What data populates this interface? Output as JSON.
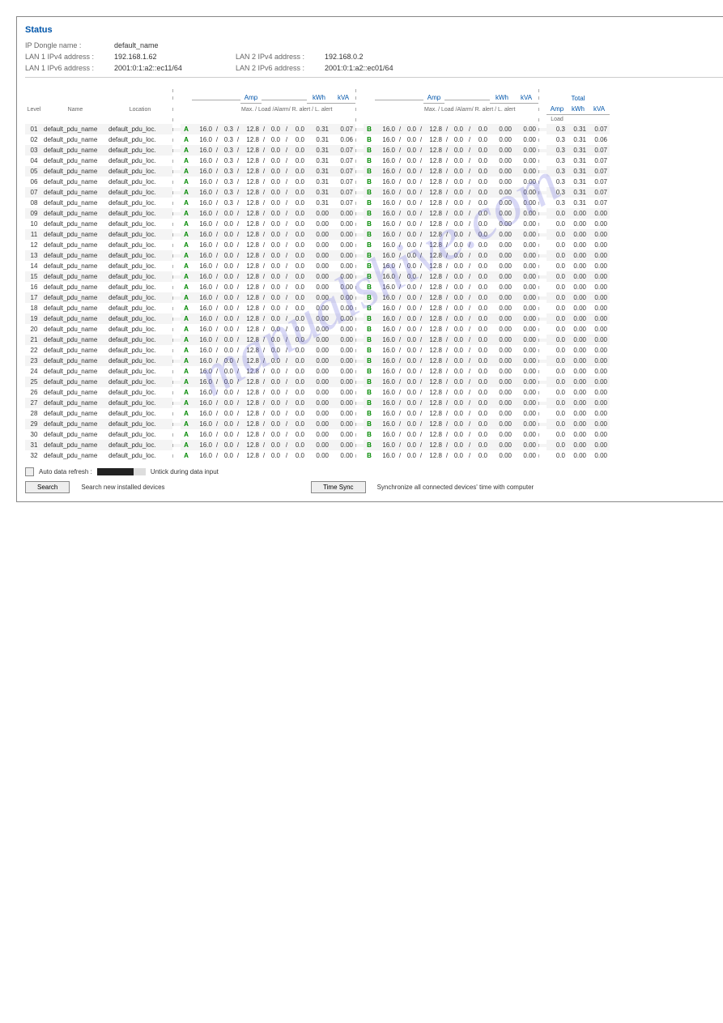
{
  "watermark": "manualshive.com",
  "header": {
    "title": "Status",
    "labels": {
      "dongle": "IP Dongle name :",
      "lan1v4": "LAN 1 IPv4 address :",
      "lan1v6": "LAN 1 IPv6 address :",
      "lan2v4": "LAN 2 IPv4 address :",
      "lan2v6": "LAN 2 IPv6 address :"
    },
    "values": {
      "dongle": "default_name",
      "lan1v4": "192.168.1.62",
      "lan1v6": "2001:0:1:a2::ec11/64",
      "lan2v4": "192.168.0.2",
      "lan2v6": "2001:0:1:a2::ec01/64"
    }
  },
  "columns": {
    "level": "Level",
    "name": "Name",
    "location": "Location",
    "amp": "Amp",
    "kwh": "kWh",
    "kva": "kVA",
    "total": "Total",
    "load": "Load",
    "sub": "Max. / Load /Alarm/ R. alert / L. alert"
  },
  "defaults": {
    "name": "default_pdu_name",
    "loc": "default_pdu_loc.",
    "sep": "/"
  },
  "rowsA": [
    {
      "lv": "01",
      "max": "16.0",
      "load": "0.3",
      "alarm": "12.8",
      "ra": "0.0",
      "la": "0.0",
      "kwh": "0.31",
      "kva": "0.07"
    },
    {
      "lv": "02",
      "max": "16.0",
      "load": "0.3",
      "alarm": "12.8",
      "ra": "0.0",
      "la": "0.0",
      "kwh": "0.31",
      "kva": "0.06"
    },
    {
      "lv": "03",
      "max": "16.0",
      "load": "0.3",
      "alarm": "12.8",
      "ra": "0.0",
      "la": "0.0",
      "kwh": "0.31",
      "kva": "0.07"
    },
    {
      "lv": "04",
      "max": "16.0",
      "load": "0.3",
      "alarm": "12.8",
      "ra": "0.0",
      "la": "0.0",
      "kwh": "0.31",
      "kva": "0.07"
    },
    {
      "lv": "05",
      "max": "16.0",
      "load": "0.3",
      "alarm": "12.8",
      "ra": "0.0",
      "la": "0.0",
      "kwh": "0.31",
      "kva": "0.07"
    },
    {
      "lv": "06",
      "max": "16.0",
      "load": "0.3",
      "alarm": "12.8",
      "ra": "0.0",
      "la": "0.0",
      "kwh": "0.31",
      "kva": "0.07"
    },
    {
      "lv": "07",
      "max": "16.0",
      "load": "0.3",
      "alarm": "12.8",
      "ra": "0.0",
      "la": "0.0",
      "kwh": "0.31",
      "kva": "0.07"
    },
    {
      "lv": "08",
      "max": "16.0",
      "load": "0.3",
      "alarm": "12.8",
      "ra": "0.0",
      "la": "0.0",
      "kwh": "0.31",
      "kva": "0.07"
    },
    {
      "lv": "09",
      "max": "16.0",
      "load": "0.0",
      "alarm": "12.8",
      "ra": "0.0",
      "la": "0.0",
      "kwh": "0.00",
      "kva": "0.00"
    },
    {
      "lv": "10",
      "max": "16.0",
      "load": "0.0",
      "alarm": "12.8",
      "ra": "0.0",
      "la": "0.0",
      "kwh": "0.00",
      "kva": "0.00"
    },
    {
      "lv": "11",
      "max": "16.0",
      "load": "0.0",
      "alarm": "12.8",
      "ra": "0.0",
      "la": "0.0",
      "kwh": "0.00",
      "kva": "0.00"
    },
    {
      "lv": "12",
      "max": "16.0",
      "load": "0.0",
      "alarm": "12.8",
      "ra": "0.0",
      "la": "0.0",
      "kwh": "0.00",
      "kva": "0.00"
    },
    {
      "lv": "13",
      "max": "16.0",
      "load": "0.0",
      "alarm": "12.8",
      "ra": "0.0",
      "la": "0.0",
      "kwh": "0.00",
      "kva": "0.00"
    },
    {
      "lv": "14",
      "max": "16.0",
      "load": "0.0",
      "alarm": "12.8",
      "ra": "0.0",
      "la": "0.0",
      "kwh": "0.00",
      "kva": "0.00"
    },
    {
      "lv": "15",
      "max": "16.0",
      "load": "0.0",
      "alarm": "12.8",
      "ra": "0.0",
      "la": "0.0",
      "kwh": "0.00",
      "kva": "0.00"
    },
    {
      "lv": "16",
      "max": "16.0",
      "load": "0.0",
      "alarm": "12.8",
      "ra": "0.0",
      "la": "0.0",
      "kwh": "0.00",
      "kva": "0.00"
    },
    {
      "lv": "17",
      "max": "16.0",
      "load": "0.0",
      "alarm": "12.8",
      "ra": "0.0",
      "la": "0.0",
      "kwh": "0.00",
      "kva": "0.00"
    },
    {
      "lv": "18",
      "max": "16.0",
      "load": "0.0",
      "alarm": "12.8",
      "ra": "0.0",
      "la": "0.0",
      "kwh": "0.00",
      "kva": "0.00"
    },
    {
      "lv": "19",
      "max": "16.0",
      "load": "0.0",
      "alarm": "12.8",
      "ra": "0.0",
      "la": "0.0",
      "kwh": "0.00",
      "kva": "0.00"
    },
    {
      "lv": "20",
      "max": "16.0",
      "load": "0.0",
      "alarm": "12.8",
      "ra": "0.0",
      "la": "0.0",
      "kwh": "0.00",
      "kva": "0.00"
    },
    {
      "lv": "21",
      "max": "16.0",
      "load": "0.0",
      "alarm": "12.8",
      "ra": "0.0",
      "la": "0.0",
      "kwh": "0.00",
      "kva": "0.00"
    },
    {
      "lv": "22",
      "max": "16.0",
      "load": "0.0",
      "alarm": "12.8",
      "ra": "0.0",
      "la": "0.0",
      "kwh": "0.00",
      "kva": "0.00"
    },
    {
      "lv": "23",
      "max": "16.0",
      "load": "0.0",
      "alarm": "12.8",
      "ra": "0.0",
      "la": "0.0",
      "kwh": "0.00",
      "kva": "0.00"
    },
    {
      "lv": "24",
      "max": "16.0",
      "load": "0.0",
      "alarm": "12.8",
      "ra": "0.0",
      "la": "0.0",
      "kwh": "0.00",
      "kva": "0.00"
    },
    {
      "lv": "25",
      "max": "16.0",
      "load": "0.0",
      "alarm": "12.8",
      "ra": "0.0",
      "la": "0.0",
      "kwh": "0.00",
      "kva": "0.00"
    },
    {
      "lv": "26",
      "max": "16.0",
      "load": "0.0",
      "alarm": "12.8",
      "ra": "0.0",
      "la": "0.0",
      "kwh": "0.00",
      "kva": "0.00"
    },
    {
      "lv": "27",
      "max": "16.0",
      "load": "0.0",
      "alarm": "12.8",
      "ra": "0.0",
      "la": "0.0",
      "kwh": "0.00",
      "kva": "0.00"
    },
    {
      "lv": "28",
      "max": "16.0",
      "load": "0.0",
      "alarm": "12.8",
      "ra": "0.0",
      "la": "0.0",
      "kwh": "0.00",
      "kva": "0.00"
    },
    {
      "lv": "29",
      "max": "16.0",
      "load": "0.0",
      "alarm": "12.8",
      "ra": "0.0",
      "la": "0.0",
      "kwh": "0.00",
      "kva": "0.00"
    },
    {
      "lv": "30",
      "max": "16.0",
      "load": "0.0",
      "alarm": "12.8",
      "ra": "0.0",
      "la": "0.0",
      "kwh": "0.00",
      "kva": "0.00"
    },
    {
      "lv": "31",
      "max": "16.0",
      "load": "0.0",
      "alarm": "12.8",
      "ra": "0.0",
      "la": "0.0",
      "kwh": "0.00",
      "kva": "0.00"
    },
    {
      "lv": "32",
      "max": "16.0",
      "load": "0.0",
      "alarm": "12.8",
      "ra": "0.0",
      "la": "0.0",
      "kwh": "0.00",
      "kva": "0.00"
    }
  ],
  "rowsB": [
    {
      "max": "16.0",
      "load": "0.0",
      "alarm": "12.8",
      "ra": "0.0",
      "la": "0.0",
      "kwh": "0.00",
      "kva": "0.00"
    },
    {
      "max": "16.0",
      "load": "0.0",
      "alarm": "12.8",
      "ra": "0.0",
      "la": "0.0",
      "kwh": "0.00",
      "kva": "0.00"
    },
    {
      "max": "16.0",
      "load": "0.0",
      "alarm": "12.8",
      "ra": "0.0",
      "la": "0.0",
      "kwh": "0.00",
      "kva": "0.00"
    },
    {
      "max": "16.0",
      "load": "0.0",
      "alarm": "12.8",
      "ra": "0.0",
      "la": "0.0",
      "kwh": "0.00",
      "kva": "0.00"
    },
    {
      "max": "16.0",
      "load": "0.0",
      "alarm": "12.8",
      "ra": "0.0",
      "la": "0.0",
      "kwh": "0.00",
      "kva": "0.00"
    },
    {
      "max": "16.0",
      "load": "0.0",
      "alarm": "12.8",
      "ra": "0.0",
      "la": "0.0",
      "kwh": "0.00",
      "kva": "0.00"
    },
    {
      "max": "16.0",
      "load": "0.0",
      "alarm": "12.8",
      "ra": "0.0",
      "la": "0.0",
      "kwh": "0.00",
      "kva": "0.00"
    },
    {
      "max": "16.0",
      "load": "0.0",
      "alarm": "12.8",
      "ra": "0.0",
      "la": "0.0",
      "kwh": "0.00",
      "kva": "0.00"
    },
    {
      "max": "16.0",
      "load": "0.0",
      "alarm": "12.8",
      "ra": "0.0",
      "la": "0.0",
      "kwh": "0.00",
      "kva": "0.00"
    },
    {
      "max": "16.0",
      "load": "0.0",
      "alarm": "12.8",
      "ra": "0.0",
      "la": "0.0",
      "kwh": "0.00",
      "kva": "0.00"
    },
    {
      "max": "16.0",
      "load": "0.0",
      "alarm": "12.8",
      "ra": "0.0",
      "la": "0.0",
      "kwh": "0.00",
      "kva": "0.00"
    },
    {
      "max": "16.0",
      "load": "0.0",
      "alarm": "12.8",
      "ra": "0.0",
      "la": "0.0",
      "kwh": "0.00",
      "kva": "0.00"
    },
    {
      "max": "16.0",
      "load": "0.0",
      "alarm": "12.8",
      "ra": "0.0",
      "la": "0.0",
      "kwh": "0.00",
      "kva": "0.00"
    },
    {
      "max": "16.0",
      "load": "0.0",
      "alarm": "12.8",
      "ra": "0.0",
      "la": "0.0",
      "kwh": "0.00",
      "kva": "0.00"
    },
    {
      "max": "16.0",
      "load": "0.0",
      "alarm": "12.8",
      "ra": "0.0",
      "la": "0.0",
      "kwh": "0.00",
      "kva": "0.00"
    },
    {
      "max": "16.0",
      "load": "0.0",
      "alarm": "12.8",
      "ra": "0.0",
      "la": "0.0",
      "kwh": "0.00",
      "kva": "0.00"
    },
    {
      "max": "16.0",
      "load": "0.0",
      "alarm": "12.8",
      "ra": "0.0",
      "la": "0.0",
      "kwh": "0.00",
      "kva": "0.00"
    },
    {
      "max": "16.0",
      "load": "0.0",
      "alarm": "12.8",
      "ra": "0.0",
      "la": "0.0",
      "kwh": "0.00",
      "kva": "0.00"
    },
    {
      "max": "16.0",
      "load": "0.0",
      "alarm": "12.8",
      "ra": "0.0",
      "la": "0.0",
      "kwh": "0.00",
      "kva": "0.00"
    },
    {
      "max": "16.0",
      "load": "0.0",
      "alarm": "12.8",
      "ra": "0.0",
      "la": "0.0",
      "kwh": "0.00",
      "kva": "0.00"
    },
    {
      "max": "16.0",
      "load": "0.0",
      "alarm": "12.8",
      "ra": "0.0",
      "la": "0.0",
      "kwh": "0.00",
      "kva": "0.00"
    },
    {
      "max": "16.0",
      "load": "0.0",
      "alarm": "12.8",
      "ra": "0.0",
      "la": "0.0",
      "kwh": "0.00",
      "kva": "0.00"
    },
    {
      "max": "16.0",
      "load": "0.0",
      "alarm": "12.8",
      "ra": "0.0",
      "la": "0.0",
      "kwh": "0.00",
      "kva": "0.00"
    },
    {
      "max": "16.0",
      "load": "0.0",
      "alarm": "12.8",
      "ra": "0.0",
      "la": "0.0",
      "kwh": "0.00",
      "kva": "0.00"
    },
    {
      "max": "16.0",
      "load": "0.0",
      "alarm": "12.8",
      "ra": "0.0",
      "la": "0.0",
      "kwh": "0.00",
      "kva": "0.00"
    },
    {
      "max": "16.0",
      "load": "0.0",
      "alarm": "12.8",
      "ra": "0.0",
      "la": "0.0",
      "kwh": "0.00",
      "kva": "0.00"
    },
    {
      "max": "16.0",
      "load": "0.0",
      "alarm": "12.8",
      "ra": "0.0",
      "la": "0.0",
      "kwh": "0.00",
      "kva": "0.00"
    },
    {
      "max": "16.0",
      "load": "0.0",
      "alarm": "12.8",
      "ra": "0.0",
      "la": "0.0",
      "kwh": "0.00",
      "kva": "0.00"
    },
    {
      "max": "16.0",
      "load": "0.0",
      "alarm": "12.8",
      "ra": "0.0",
      "la": "0.0",
      "kwh": "0.00",
      "kva": "0.00"
    },
    {
      "max": "16.0",
      "load": "0.0",
      "alarm": "12.8",
      "ra": "0.0",
      "la": "0.0",
      "kwh": "0.00",
      "kva": "0.00"
    },
    {
      "max": "16.0",
      "load": "0.0",
      "alarm": "12.8",
      "ra": "0.0",
      "la": "0.0",
      "kwh": "0.00",
      "kva": "0.00"
    },
    {
      "max": "16.0",
      "load": "0.0",
      "alarm": "12.8",
      "ra": "0.0",
      "la": "0.0",
      "kwh": "0.00",
      "kva": "0.00"
    }
  ],
  "totals": [
    {
      "amp": "0.3",
      "kwh": "0.31",
      "kva": "0.07"
    },
    {
      "amp": "0.3",
      "kwh": "0.31",
      "kva": "0.06"
    },
    {
      "amp": "0.3",
      "kwh": "0.31",
      "kva": "0.07"
    },
    {
      "amp": "0.3",
      "kwh": "0.31",
      "kva": "0.07"
    },
    {
      "amp": "0.3",
      "kwh": "0.31",
      "kva": "0.07"
    },
    {
      "amp": "0.3",
      "kwh": "0.31",
      "kva": "0.07"
    },
    {
      "amp": "0.3",
      "kwh": "0.31",
      "kva": "0.07"
    },
    {
      "amp": "0.3",
      "kwh": "0.31",
      "kva": "0.07"
    },
    {
      "amp": "0.0",
      "kwh": "0.00",
      "kva": "0.00"
    },
    {
      "amp": "0.0",
      "kwh": "0.00",
      "kva": "0.00"
    },
    {
      "amp": "0.0",
      "kwh": "0.00",
      "kva": "0.00"
    },
    {
      "amp": "0.0",
      "kwh": "0.00",
      "kva": "0.00"
    },
    {
      "amp": "0.0",
      "kwh": "0.00",
      "kva": "0.00"
    },
    {
      "amp": "0.0",
      "kwh": "0.00",
      "kva": "0.00"
    },
    {
      "amp": "0.0",
      "kwh": "0.00",
      "kva": "0.00"
    },
    {
      "amp": "0.0",
      "kwh": "0.00",
      "kva": "0.00"
    },
    {
      "amp": "0.0",
      "kwh": "0.00",
      "kva": "0.00"
    },
    {
      "amp": "0.0",
      "kwh": "0.00",
      "kva": "0.00"
    },
    {
      "amp": "0.0",
      "kwh": "0.00",
      "kva": "0.00"
    },
    {
      "amp": "0.0",
      "kwh": "0.00",
      "kva": "0.00"
    },
    {
      "amp": "0.0",
      "kwh": "0.00",
      "kva": "0.00"
    },
    {
      "amp": "0.0",
      "kwh": "0.00",
      "kva": "0.00"
    },
    {
      "amp": "0.0",
      "kwh": "0.00",
      "kva": "0.00"
    },
    {
      "amp": "0.0",
      "kwh": "0.00",
      "kva": "0.00"
    },
    {
      "amp": "0.0",
      "kwh": "0.00",
      "kva": "0.00"
    },
    {
      "amp": "0.0",
      "kwh": "0.00",
      "kva": "0.00"
    },
    {
      "amp": "0.0",
      "kwh": "0.00",
      "kva": "0.00"
    },
    {
      "amp": "0.0",
      "kwh": "0.00",
      "kva": "0.00"
    },
    {
      "amp": "0.0",
      "kwh": "0.00",
      "kva": "0.00"
    },
    {
      "amp": "0.0",
      "kwh": "0.00",
      "kva": "0.00"
    },
    {
      "amp": "0.0",
      "kwh": "0.00",
      "kva": "0.00"
    },
    {
      "amp": "0.0",
      "kwh": "0.00",
      "kva": "0.00"
    }
  ],
  "phases": {
    "a": "A",
    "b": "B"
  },
  "footer": {
    "auto_refresh": "Auto data refresh :",
    "untick": "Untick during data input",
    "search": "Search",
    "search_desc": "Search new installed devices",
    "timesync": "Time Sync",
    "timesync_desc": "Synchronize all connected devices' time with computer"
  }
}
